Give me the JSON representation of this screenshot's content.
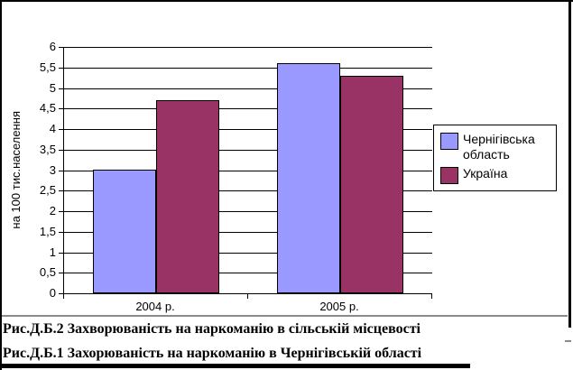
{
  "figure": {
    "captions": [
      "Рис.Д.Б.2 Захворюваність на наркоманію в сільській місцевості",
      "Рис.Д.Б.1 Захорюваність на наркоманію в Чернігівській області"
    ]
  },
  "chart_data": {
    "type": "bar",
    "categories": [
      "2004 р.",
      "2005 р."
    ],
    "series": [
      {
        "name": "Чернігівська область",
        "values": [
          3.0,
          5.6
        ],
        "color": "#9999FF"
      },
      {
        "name": "Україна",
        "values": [
          4.7,
          5.3
        ],
        "color": "#993366"
      }
    ],
    "title": "",
    "xlabel": "",
    "ylabel": "на 100 тис.населення",
    "ylim": [
      0,
      6
    ],
    "ytick_step": 0.5,
    "ytick_labels": [
      "0",
      "0,5",
      "1",
      "1,5",
      "2",
      "2,5",
      "3",
      "3,5",
      "4",
      "4,5",
      "5",
      "5,5",
      "6"
    ],
    "grid": true,
    "legend_position": "right",
    "decimal_separator": ",",
    "plot_background": "#FFFFFF",
    "gridline_color": "#000000"
  }
}
